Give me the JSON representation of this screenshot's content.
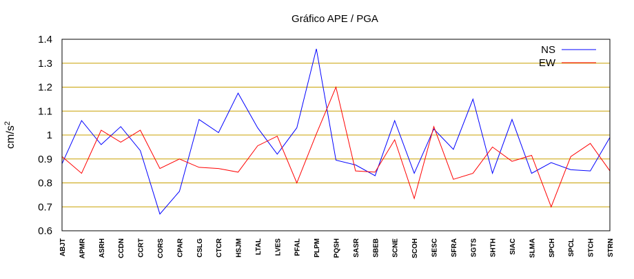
{
  "chart_data": {
    "type": "line",
    "title": "Gráfico  APE / PGA",
    "xlabel": "",
    "ylabel": "cm/s",
    "ylabel_superscript": "2",
    "ylim": [
      0.6,
      1.4
    ],
    "yticks": [
      "0.6",
      "0.7",
      "0.8",
      "0.9",
      "1",
      "1.1",
      "1.2",
      "1.3",
      "1.4"
    ],
    "grid": "horizontal",
    "grid_color": "#c8a000",
    "legend_position": "top-right",
    "categories": [
      "ABJT",
      "APMR",
      "ASRH",
      "CCDN",
      "CCRT",
      "CORS",
      "CPAR",
      "CSLG",
      "CTCR",
      "HSJM",
      "LTAL",
      "LVES",
      "PFAL",
      "PLPM",
      "PQSH",
      "SASR",
      "SBEB",
      "SCNE",
      "SCOH",
      "SESC",
      "SFRA",
      "SGTS",
      "SHTH",
      "SIAC",
      "SLMA",
      "SPCH",
      "SPCL",
      "STCH",
      "STRN"
    ],
    "series": [
      {
        "name": "NS",
        "color": "#0000ff",
        "values": [
          0.88,
          1.06,
          0.96,
          1.035,
          0.935,
          0.67,
          0.765,
          1.065,
          1.01,
          1.175,
          1.03,
          0.92,
          1.03,
          1.36,
          0.895,
          0.875,
          0.83,
          1.06,
          0.84,
          1.025,
          0.94,
          1.15,
          0.84,
          1.065,
          0.84,
          0.885,
          0.855,
          0.85,
          0.99
        ]
      },
      {
        "name": "EW",
        "color": "#ff0000",
        "values": [
          0.91,
          0.84,
          1.02,
          0.97,
          1.02,
          0.86,
          0.9,
          0.865,
          0.86,
          0.845,
          0.955,
          0.995,
          0.8,
          1.005,
          1.2,
          0.85,
          0.845,
          0.98,
          0.735,
          1.035,
          0.815,
          0.84,
          0.95,
          0.89,
          0.915,
          0.7,
          0.91,
          0.965,
          0.85
        ]
      }
    ]
  }
}
